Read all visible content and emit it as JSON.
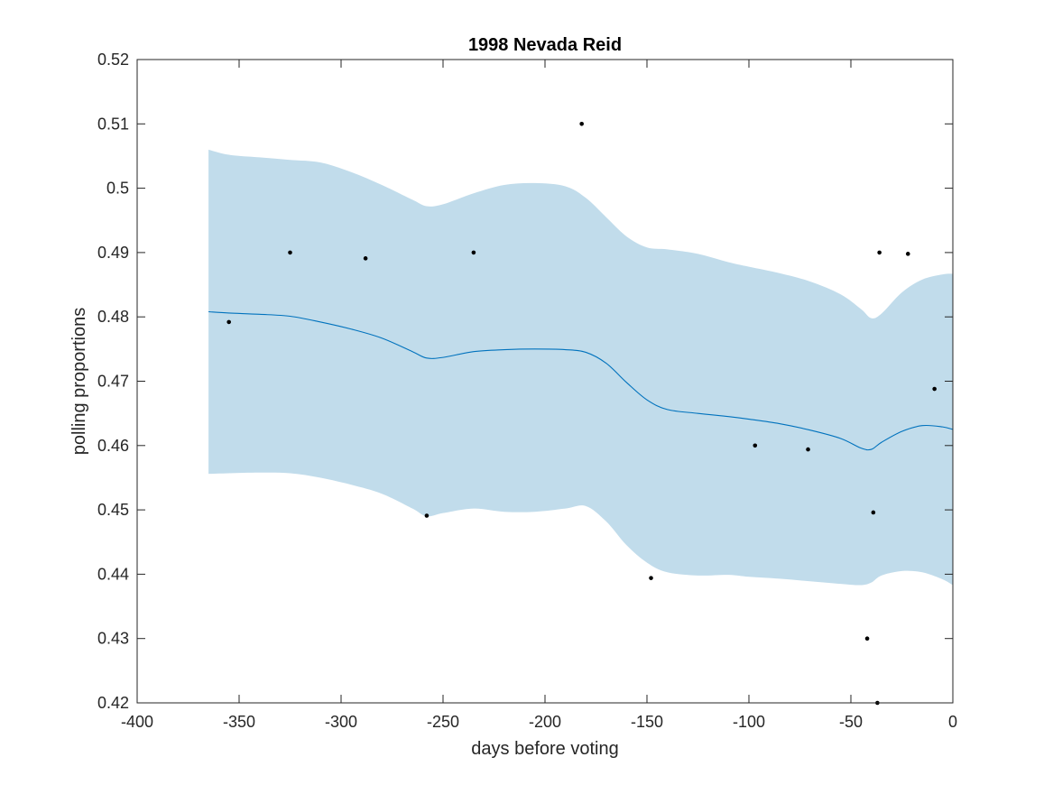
{
  "chart_data": {
    "type": "line",
    "title": "1998 Nevada Reid",
    "xlabel": "days before voting",
    "ylabel": "polling proportions",
    "xlim": [
      -400,
      0
    ],
    "ylim": [
      0.42,
      0.52
    ],
    "xticks": [
      -400,
      -350,
      -300,
      -250,
      -200,
      -150,
      -100,
      -50,
      0
    ],
    "xtick_labels": [
      "-400",
      "-350",
      "-300",
      "-250",
      "-200",
      "-150",
      "-100",
      "-50",
      "0"
    ],
    "yticks": [
      0.42,
      0.43,
      0.44,
      0.45,
      0.46,
      0.47,
      0.48,
      0.49,
      0.5,
      0.51,
      0.52
    ],
    "ytick_labels": [
      "0.42",
      "0.43",
      "0.44",
      "0.45",
      "0.46",
      "0.47",
      "0.48",
      "0.49",
      "0.5",
      "0.51",
      "0.52"
    ],
    "grid": false,
    "colors": {
      "band": "#c1dceb",
      "line": "#0072bd",
      "points": "#000000",
      "axes": "#262626"
    },
    "band": {
      "x": [
        -365,
        -355,
        -340,
        -325,
        -310,
        -295,
        -280,
        -265,
        -258,
        -250,
        -235,
        -220,
        -205,
        -190,
        -180,
        -170,
        -160,
        -150,
        -140,
        -125,
        -110,
        -100,
        -85,
        -70,
        -55,
        -45,
        -40,
        -35,
        -25,
        -15,
        -5,
        0
      ],
      "upper": [
        0.506,
        0.5052,
        0.5048,
        0.5044,
        0.504,
        0.5025,
        0.5005,
        0.4982,
        0.4972,
        0.4975,
        0.4992,
        0.5005,
        0.5008,
        0.5003,
        0.4985,
        0.4955,
        0.4925,
        0.4908,
        0.4905,
        0.4898,
        0.4885,
        0.4878,
        0.4868,
        0.4855,
        0.4835,
        0.4812,
        0.4798,
        0.4805,
        0.4838,
        0.4858,
        0.4866,
        0.4867
      ],
      "lower": [
        0.4556,
        0.4557,
        0.4558,
        0.4557,
        0.455,
        0.4539,
        0.4525,
        0.4502,
        0.449,
        0.4495,
        0.4502,
        0.4497,
        0.4497,
        0.4502,
        0.4506,
        0.4482,
        0.4445,
        0.4418,
        0.4403,
        0.4398,
        0.4399,
        0.4396,
        0.4393,
        0.4389,
        0.4385,
        0.4383,
        0.4387,
        0.4398,
        0.4405,
        0.4403,
        0.4392,
        0.4383
      ]
    },
    "series": [
      {
        "x": [
          -365,
          -355,
          -340,
          -325,
          -310,
          -295,
          -280,
          -265,
          -258,
          -250,
          -235,
          -220,
          -205,
          -190,
          -180,
          -170,
          -160,
          -150,
          -140,
          -125,
          -110,
          -100,
          -85,
          -70,
          -55,
          -45,
          -40,
          -35,
          -25,
          -15,
          -5,
          0
        ],
        "values": [
          0.4808,
          0.4806,
          0.4804,
          0.4801,
          0.4792,
          0.4781,
          0.4767,
          0.4746,
          0.4736,
          0.4737,
          0.4746,
          0.4749,
          0.475,
          0.4749,
          0.4745,
          0.4728,
          0.4698,
          0.4671,
          0.4656,
          0.465,
          0.4645,
          0.4641,
          0.4634,
          0.4624,
          0.4611,
          0.4596,
          0.4594,
          0.4605,
          0.4622,
          0.4631,
          0.4629,
          0.4625
        ]
      }
    ],
    "points": {
      "x": [
        -355,
        -325,
        -288,
        -258,
        -235,
        -182,
        -148,
        -97,
        -71,
        -42,
        -39,
        -37,
        -36,
        -22,
        -9
      ],
      "y": [
        0.4792,
        0.49,
        0.4891,
        0.4491,
        0.49,
        0.51,
        0.4394,
        0.46,
        0.4594,
        0.43,
        0.4496,
        0.42,
        0.49,
        0.4898,
        0.4688
      ]
    }
  }
}
